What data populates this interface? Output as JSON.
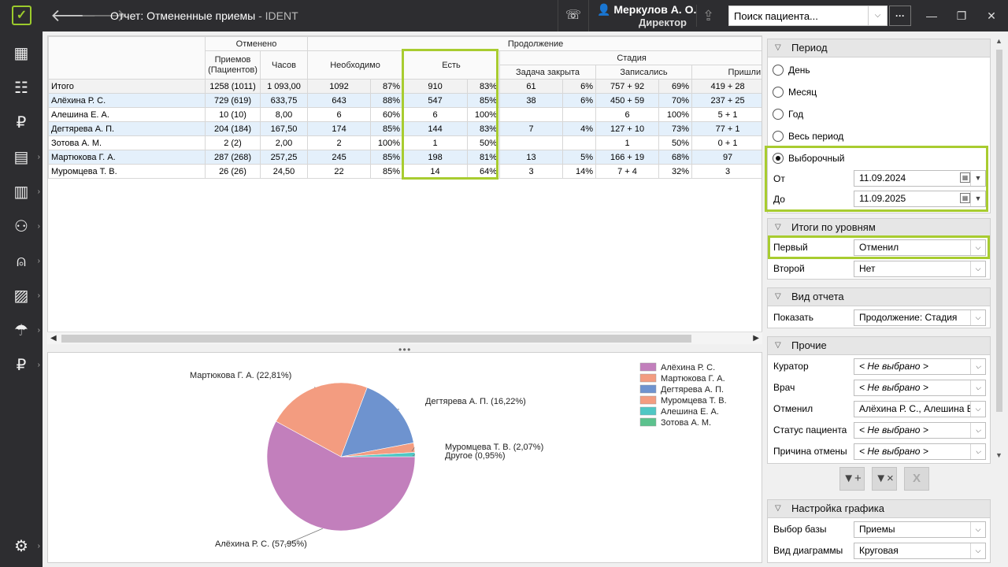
{
  "app": {
    "title": "Отчет: Отмененные приемы",
    "title_suffix": " - IDENT",
    "user_name": "Меркулов А. О.",
    "user_role": "Директор",
    "search_placeholder": "Поиск пациента...",
    "more": "···"
  },
  "icons": {
    "logo": "ident-logo-check",
    "back": "arrow-left-icon",
    "forward": "arrow-right-icon",
    "phone": "phone-settings-icon",
    "user": "user-icon",
    "export": "export-icon",
    "minimize": "minimize-icon",
    "restore": "restore-icon",
    "close": "close-icon"
  },
  "sidebar": {
    "items": [
      {
        "name": "schedule",
        "icon": "calendar-grid-icon",
        "glyph": "▦"
      },
      {
        "name": "tasks",
        "icon": "task-list-icon",
        "glyph": "☷"
      },
      {
        "name": "finance",
        "icon": "ruble-icon",
        "glyph": "₽"
      },
      {
        "name": "documents",
        "icon": "documents-icon",
        "glyph": "▤",
        "arrow": "›"
      },
      {
        "name": "reports",
        "icon": "reports-chart-icon",
        "glyph": "▥",
        "arrow": "›"
      },
      {
        "name": "patients",
        "icon": "people-icon",
        "glyph": "⚇",
        "arrow": "›"
      },
      {
        "name": "dentistry",
        "icon": "tooth-icon",
        "glyph": "⍝",
        "arrow": "›"
      },
      {
        "name": "stock",
        "icon": "stock-icon",
        "glyph": "▨",
        "arrow": "›"
      },
      {
        "name": "insurance",
        "icon": "umbrella-icon",
        "glyph": "☂",
        "arrow": "›"
      },
      {
        "name": "payments",
        "icon": "ruble-hand-icon",
        "glyph": "₽",
        "arrow": "›"
      }
    ],
    "settings": {
      "icon": "gear-icon",
      "glyph": "⚙",
      "arrow": "›"
    }
  },
  "table": {
    "header": {
      "cancelled": "Отменено",
      "continuation": "Продолжение",
      "stage": "Стадия",
      "appointments": "Приемов (Пациентов)",
      "hours": "Часов",
      "needed": "Необходимо",
      "exists": "Есть",
      "task_closed": "Задача закрыта",
      "booked": "Записались",
      "came": "Пришли"
    },
    "rows": [
      {
        "name": "Итого",
        "appts": "1258 (1011)",
        "hours": "1 093,00",
        "need": "1092",
        "need_pct": "87%",
        "has": "910",
        "has_pct": "83%",
        "task": "61",
        "task_pct": "6%",
        "booked": "757 + 92",
        "booked_pct": "69%",
        "came": "419 + 28"
      },
      {
        "name": "Алёхина Р. С.",
        "appts": "729 (619)",
        "hours": "633,75",
        "need": "643",
        "need_pct": "88%",
        "has": "547",
        "has_pct": "85%",
        "task": "38",
        "task_pct": "6%",
        "booked": "450 + 59",
        "booked_pct": "70%",
        "came": "237 + 25"
      },
      {
        "name": "Алешина Е. А.",
        "appts": "10 (10)",
        "hours": "8,00",
        "need": "6",
        "need_pct": "60%",
        "has": "6",
        "has_pct": "100%",
        "task": "",
        "task_pct": "",
        "booked": "6",
        "booked_pct": "100%",
        "came": "5 + 1"
      },
      {
        "name": "Дегтярева А. П.",
        "appts": "204 (184)",
        "hours": "167,50",
        "need": "174",
        "need_pct": "85%",
        "has": "144",
        "has_pct": "83%",
        "task": "7",
        "task_pct": "4%",
        "booked": "127 + 10",
        "booked_pct": "73%",
        "came": "77 + 1"
      },
      {
        "name": "Зотова А. М.",
        "appts": "2 (2)",
        "hours": "2,00",
        "need": "2",
        "need_pct": "100%",
        "has": "1",
        "has_pct": "50%",
        "task": "",
        "task_pct": "",
        "booked": "1",
        "booked_pct": "50%",
        "came": "0 + 1"
      },
      {
        "name": "Мартюкова Г. А.",
        "appts": "287 (268)",
        "hours": "257,25",
        "need": "245",
        "need_pct": "85%",
        "has": "198",
        "has_pct": "81%",
        "task": "13",
        "task_pct": "5%",
        "booked": "166 + 19",
        "booked_pct": "68%",
        "came": "97"
      },
      {
        "name": "Муромцева Т. В.",
        "appts": "26 (26)",
        "hours": "24,50",
        "need": "22",
        "need_pct": "85%",
        "has": "14",
        "has_pct": "64%",
        "task": "3",
        "task_pct": "14%",
        "booked": "7 + 4",
        "booked_pct": "32%",
        "came": "3"
      }
    ]
  },
  "chart_data": {
    "type": "pie",
    "slices": [
      {
        "label": "Алёхина Р. С. (57,95%)",
        "legend": "Алёхина Р. С.",
        "value": 57.95,
        "color": "#c27fbc"
      },
      {
        "label": "Мартюкова Г. А. (22,81%)",
        "legend": "Мартюкова Г. А.",
        "value": 22.81,
        "color": "#f39c80"
      },
      {
        "label": "Дегтярева А. П. (16,22%)",
        "legend": "Дегтярева А. П.",
        "value": 16.22,
        "color": "#6e93cf"
      },
      {
        "label": "Муромцева Т. В. (2,07%)",
        "legend": "Муромцева Т. В.",
        "value": 2.07,
        "color": "#f39c80"
      },
      {
        "label": "Другое (0,95%)",
        "legend": "",
        "value": 0.95,
        "color": "#4fc7c4"
      }
    ],
    "legend": [
      {
        "name": "Алёхина Р. С.",
        "color": "#c27fbc"
      },
      {
        "name": "Мартюкова Г. А.",
        "color": "#f39c80"
      },
      {
        "name": "Дегтярева А. П.",
        "color": "#6e93cf"
      },
      {
        "name": "Муромцева Т. В.",
        "color": "#f39c80"
      },
      {
        "name": "Алешина Е. А.",
        "color": "#4fc7c4"
      },
      {
        "name": "Зотова А. М.",
        "color": "#5cc28e"
      }
    ],
    "legend_position": "top-right"
  },
  "params": {
    "period": {
      "title": "Период",
      "options": [
        "День",
        "Месяц",
        "Год",
        "Весь период",
        "Выборочный"
      ],
      "selected": "Выборочный",
      "from_label": "От",
      "from_value": "11.09.2024",
      "to_label": "До",
      "to_value": "11.09.2025"
    },
    "levels": {
      "title": "Итоги по уровням",
      "first_label": "Первый",
      "first_value": "Отменил",
      "second_label": "Второй",
      "second_value": "Нет"
    },
    "view": {
      "title": "Вид отчета",
      "show_label": "Показать",
      "show_value": "Продолжение: Стадия"
    },
    "other": {
      "title": "Прочие",
      "curator_label": "Куратор",
      "curator_value": "< Не выбрано >",
      "doctor_label": "Врач",
      "doctor_value": "< Не выбрано >",
      "cancelled_by_label": "Отменил",
      "cancelled_by_value": "Алёхина Р. С., Алешина Е. А.",
      "status_label": "Статус пациента",
      "status_value": "< Не выбрано >",
      "reason_label": "Причина отмены",
      "reason_value": "< Не выбрано >"
    },
    "chart_settings": {
      "title": "Настройка графика",
      "base_label": "Выбор базы",
      "base_value": "Приемы",
      "kind_label": "Вид диаграммы",
      "kind_value": "Круговая"
    },
    "filter_buttons": [
      {
        "icon": "filter-add-icon",
        "glyph": "▼+"
      },
      {
        "icon": "filter-clear-icon",
        "glyph": "▼×"
      },
      {
        "icon": "clear-x-icon",
        "glyph": "X"
      }
    ]
  },
  "colors": {
    "accent_highlight": "#a8cc30",
    "logo": "#9ccb2c",
    "sidebar_bg": "#2d2d30"
  }
}
